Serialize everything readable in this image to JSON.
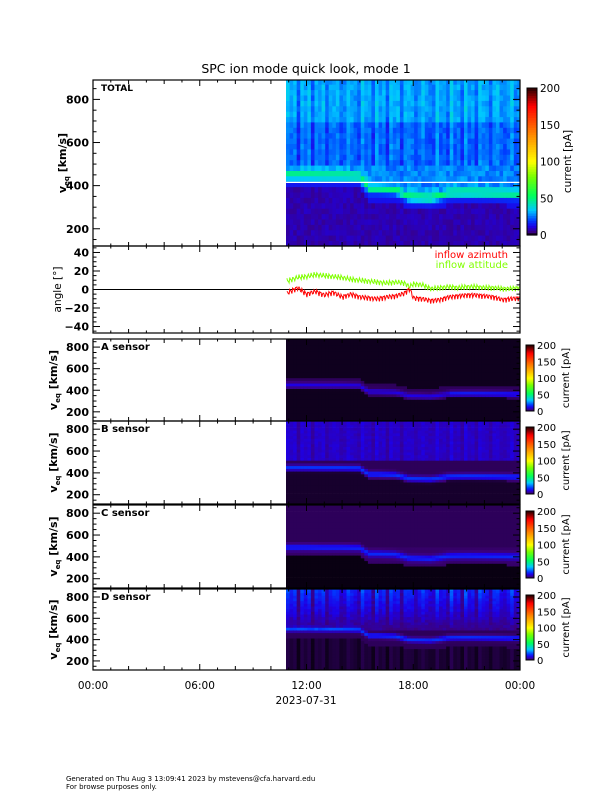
{
  "chart_data": {
    "title": "SPC ion mode quick look, mode 1",
    "type": "heatmap",
    "x_tick_labels": [
      "00:00",
      "06:00",
      "12:00",
      "18:00",
      "00:00"
    ],
    "x_date_label": "2023-07-31",
    "x_range_hours": [
      0,
      24
    ],
    "data_start_hour": 10.85,
    "panels": [
      {
        "label": "TOTAL",
        "type": "heatmap",
        "ylabel": "v_eq [km/s]",
        "yticks": [
          200,
          400,
          600,
          800
        ],
        "ylim": [
          120,
          890
        ],
        "colorbar": {
          "label": "current [pA]",
          "ticks": [
            0,
            50,
            100,
            150,
            200
          ],
          "range": [
            0,
            200
          ]
        },
        "peak_velocity_kms": {
          "hours": [
            11,
            12,
            13,
            14,
            15,
            15.5,
            16,
            17,
            17.8,
            18,
            19,
            20,
            21,
            22,
            23,
            24
          ],
          "values": [
            450,
            450,
            448,
            448,
            445,
            390,
            390,
            385,
            350,
            350,
            345,
            370,
            372,
            370,
            368,
            365
          ]
        }
      },
      {
        "label": "",
        "type": "line",
        "ylabel": "angle [°]",
        "yticks": [
          -40,
          -20,
          0,
          20,
          40
        ],
        "ylim": [
          -47,
          47
        ],
        "series": [
          {
            "name": "inflow azimuth",
            "color": "#ff0000",
            "hours": [
              10.9,
              11.5,
              12,
              12.5,
              13,
              13.5,
              14,
              14.5,
              15,
              15.5,
              16,
              16.5,
              17,
              17.5,
              17.8,
              18,
              18.5,
              19,
              19.5,
              20,
              20.5,
              21,
              21.5,
              22,
              22.5,
              23,
              23.5,
              24
            ],
            "values": [
              -4,
              2,
              -5,
              -2,
              -6,
              -3,
              -8,
              -5,
              -8,
              -9,
              -10,
              -8,
              -7,
              -4,
              1,
              -9,
              -10,
              -12,
              -11,
              -8,
              -7,
              -6,
              -6,
              -7,
              -8,
              -11,
              -10,
              -9
            ]
          },
          {
            "name": "inflow attitude",
            "color": "#80ff00",
            "hours": [
              10.9,
              11.5,
              12,
              12.5,
              13,
              13.5,
              14,
              14.5,
              15,
              15.5,
              16,
              16.5,
              17,
              17.5,
              17.8,
              18,
              18.5,
              19,
              19.5,
              20,
              20.5,
              21,
              21.5,
              22,
              22.5,
              23,
              23.5,
              24
            ],
            "values": [
              9,
              13,
              14,
              16,
              15,
              14,
              13,
              11,
              10,
              9,
              8,
              7,
              8,
              7,
              3,
              6,
              5,
              1,
              2,
              3,
              2,
              3,
              3,
              2,
              2,
              1,
              1,
              2
            ]
          }
        ]
      },
      {
        "label": "A sensor",
        "type": "heatmap",
        "ylabel": "v_eq [km/s]",
        "yticks": [
          200,
          400,
          600,
          800
        ],
        "ylim": [
          115,
          875
        ],
        "colorbar": {
          "label": "current [pA]",
          "ticks": [
            0,
            50,
            100,
            150,
            200
          ],
          "range": [
            0,
            200
          ]
        }
      },
      {
        "label": "B sensor",
        "type": "heatmap",
        "ylabel": "v_eq [km/s]",
        "yticks": [
          200,
          400,
          600,
          800
        ],
        "ylim": [
          115,
          875
        ],
        "colorbar": {
          "label": "current [pA]",
          "ticks": [
            0,
            50,
            100,
            150,
            200
          ],
          "range": [
            0,
            200
          ]
        }
      },
      {
        "label": "C sensor",
        "type": "heatmap",
        "ylabel": "v_eq [km/s]",
        "yticks": [
          200,
          400,
          600,
          800
        ],
        "ylim": [
          115,
          875
        ],
        "colorbar": {
          "label": "current [pA]",
          "ticks": [
            0,
            50,
            100,
            150,
            200
          ],
          "range": [
            0,
            200
          ]
        }
      },
      {
        "label": "D sensor",
        "type": "heatmap",
        "ylabel": "v_eq [km/s]",
        "yticks": [
          200,
          400,
          600,
          800
        ],
        "ylim": [
          115,
          875
        ],
        "colorbar": {
          "label": "current [pA]",
          "ticks": [
            0,
            50,
            100,
            150,
            200
          ],
          "range": [
            0,
            200
          ]
        }
      }
    ],
    "grid": false
  },
  "footer": {
    "line1": "Generated on Thu Aug  3 13:09:41 2023 by mstevens@cfa.harvard.edu",
    "line2": "For browse purposes only."
  }
}
